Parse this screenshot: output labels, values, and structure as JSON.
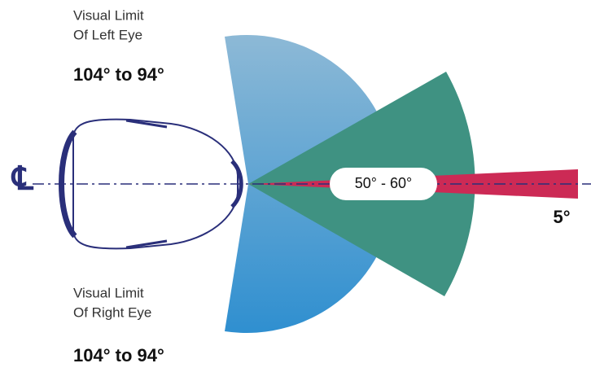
{
  "left_eye": {
    "line1": "Visual Limit",
    "line2": "Of Left Eye",
    "range": "104° to 94°"
  },
  "right_eye": {
    "line1": "Visual Limit",
    "line2": "Of Right Eye",
    "range": "104° to 94°"
  },
  "center_label": "50° - 60°",
  "narrow_label": "5°",
  "centerline_symbol": "℄"
}
